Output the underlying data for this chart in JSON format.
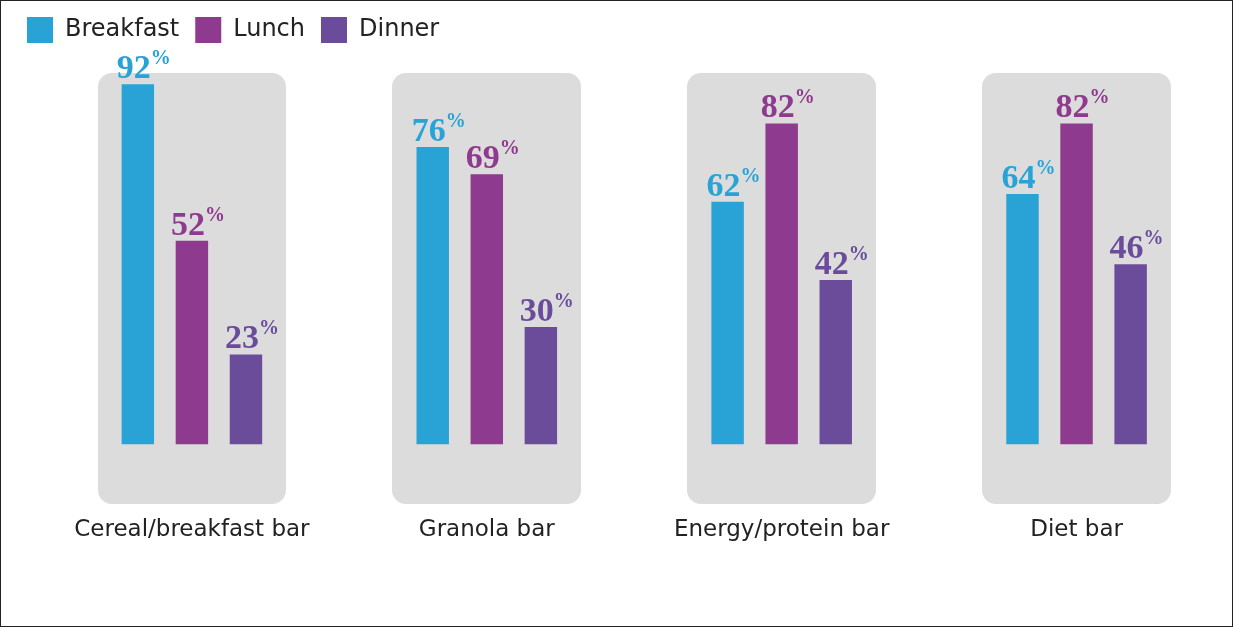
{
  "chart_data": {
    "type": "bar",
    "categories": [
      "Cereal/breakfast bar",
      "Granola bar",
      "Energy/protein bar",
      "Diet bar"
    ],
    "series": [
      {
        "name": "Breakfast",
        "color": "#29a3d6",
        "values": [
          92,
          76,
          62,
          64
        ],
        "value_labels": [
          "92%",
          "76%",
          "62%",
          "64%"
        ]
      },
      {
        "name": "Lunch",
        "color": "#8e3a8e",
        "values": [
          52,
          69,
          82,
          82
        ],
        "value_labels": [
          "52%",
          "69%",
          "82%",
          "82%"
        ]
      },
      {
        "name": "Dinner",
        "color": "#6b4c9a",
        "values": [
          23,
          30,
          42,
          46
        ],
        "value_labels": [
          "23%",
          "30%",
          "42%",
          "46%"
        ]
      }
    ],
    "legend": "top left",
    "grid": false
  }
}
